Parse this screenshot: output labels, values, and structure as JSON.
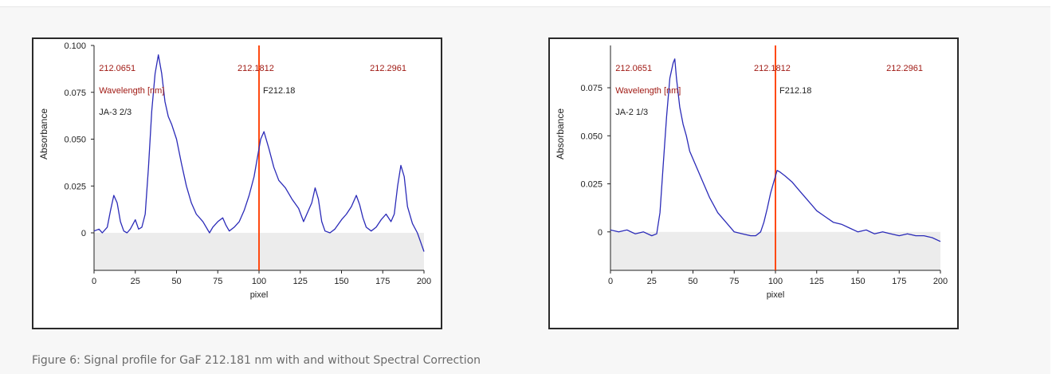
{
  "caption": "Figure 6: Signal profile for GaF 212.181 nm with and without Spectral Correction",
  "colors": {
    "series": "#2b2bb8",
    "marker": "#ff4a12",
    "annotation": "#a01a14",
    "baseline_fill": "#ececec"
  },
  "chart_data": [
    {
      "type": "line",
      "ylabel": "Absorbance",
      "xlabel": "pixel",
      "xlim": [
        0,
        200
      ],
      "ylim": [
        -0.02,
        0.1
      ],
      "xticks": [
        0,
        25,
        50,
        75,
        100,
        125,
        150,
        175,
        200
      ],
      "yticks": [
        0,
        0.025,
        0.05,
        0.075,
        0.1
      ],
      "ytick_labels": [
        "0",
        "0.025",
        "0.050",
        "0.075",
        "0.100"
      ],
      "wavelength_labels": [
        "212.0651",
        "212.1812",
        "212.2961"
      ],
      "wavelength_axis_label": "Wavelength [nm]",
      "marker_label": "F212.18",
      "marker_x": 100,
      "sample_label": "JA-3 2/3",
      "series": [
        {
          "x": [
            0,
            3,
            5,
            8,
            10,
            12,
            14,
            16,
            18,
            20,
            22,
            25,
            27,
            29,
            31,
            33,
            35,
            37,
            39,
            41,
            43,
            45,
            47,
            50,
            53,
            56,
            59,
            62,
            66,
            70,
            72,
            75,
            78,
            80,
            82,
            85,
            88,
            91,
            94,
            97,
            99,
            101,
            103,
            106,
            109,
            112,
            116,
            120,
            124,
            127,
            129,
            132,
            134,
            136,
            138,
            140,
            143,
            146,
            150,
            153,
            156,
            159,
            161,
            163,
            165,
            168,
            171,
            174,
            177,
            180,
            182,
            184,
            186,
            188,
            190,
            193,
            196,
            198,
            200
          ],
          "y": [
            0.001,
            0.002,
            0.0,
            0.003,
            0.012,
            0.02,
            0.016,
            0.006,
            0.001,
            0.0,
            0.002,
            0.007,
            0.002,
            0.003,
            0.01,
            0.035,
            0.065,
            0.085,
            0.095,
            0.085,
            0.07,
            0.062,
            0.058,
            0.05,
            0.037,
            0.025,
            0.016,
            0.01,
            0.006,
            0.0,
            0.003,
            0.006,
            0.008,
            0.004,
            0.001,
            0.003,
            0.006,
            0.012,
            0.02,
            0.03,
            0.04,
            0.05,
            0.054,
            0.045,
            0.035,
            0.028,
            0.024,
            0.018,
            0.013,
            0.006,
            0.01,
            0.016,
            0.024,
            0.018,
            0.006,
            0.001,
            0.0,
            0.002,
            0.007,
            0.01,
            0.014,
            0.02,
            0.015,
            0.008,
            0.003,
            0.001,
            0.003,
            0.007,
            0.01,
            0.006,
            0.01,
            0.025,
            0.036,
            0.03,
            0.014,
            0.005,
            0.0,
            -0.005,
            -0.01
          ]
        }
      ]
    },
    {
      "type": "line",
      "ylabel": "Absorbance",
      "xlabel": "pixel",
      "xlim": [
        0,
        200
      ],
      "ylim": [
        -0.02,
        0.097
      ],
      "xticks": [
        0,
        25,
        50,
        75,
        100,
        125,
        150,
        175,
        200
      ],
      "yticks": [
        0,
        0.025,
        0.05,
        0.075
      ],
      "ytick_labels": [
        "0",
        "0.025",
        "0.050",
        "0.075"
      ],
      "wavelength_labels": [
        "212.0651",
        "212.1812",
        "212.2961"
      ],
      "wavelength_axis_label": "Wavelength [nm]",
      "marker_label": "F212.18",
      "marker_x": 100,
      "sample_label": "JA-2 1/3",
      "series": [
        {
          "x": [
            0,
            5,
            10,
            15,
            20,
            25,
            28,
            30,
            32,
            34,
            36,
            38,
            39,
            40,
            42,
            44,
            46,
            48,
            52,
            56,
            60,
            65,
            70,
            75,
            80,
            85,
            88,
            91,
            93,
            95,
            97,
            99,
            101,
            103,
            106,
            110,
            115,
            120,
            125,
            130,
            135,
            140,
            145,
            150,
            155,
            160,
            165,
            170,
            175,
            180,
            185,
            190,
            195,
            200
          ],
          "y": [
            0.001,
            0.0,
            0.001,
            -0.001,
            0.0,
            -0.002,
            -0.001,
            0.01,
            0.035,
            0.06,
            0.08,
            0.088,
            0.09,
            0.08,
            0.065,
            0.056,
            0.05,
            0.042,
            0.034,
            0.026,
            0.018,
            0.01,
            0.005,
            0.0,
            -0.001,
            -0.002,
            -0.002,
            0.0,
            0.005,
            0.012,
            0.02,
            0.026,
            0.032,
            0.031,
            0.029,
            0.026,
            0.021,
            0.016,
            0.011,
            0.008,
            0.005,
            0.004,
            0.002,
            0.0,
            0.001,
            -0.001,
            0.0,
            -0.001,
            -0.002,
            -0.001,
            -0.002,
            -0.002,
            -0.003,
            -0.005
          ]
        }
      ]
    }
  ]
}
